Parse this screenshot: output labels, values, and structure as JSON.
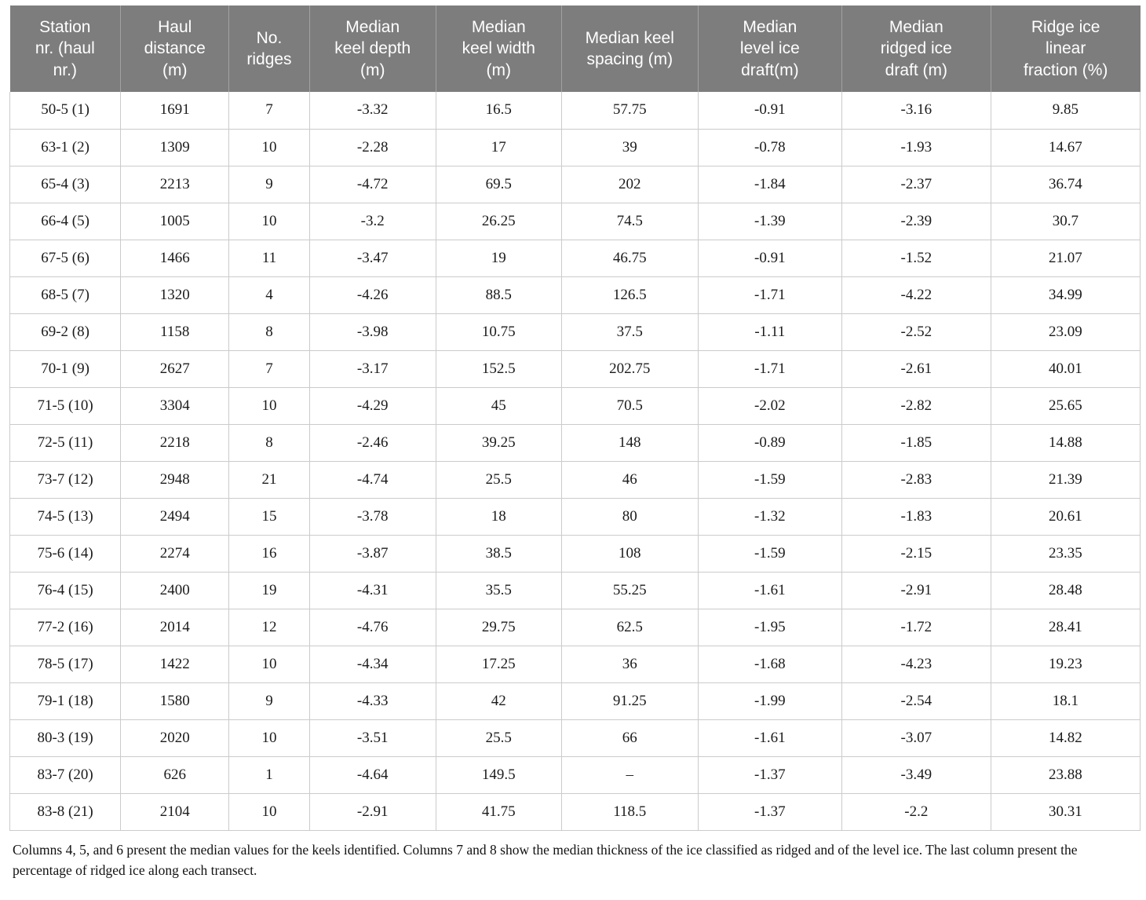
{
  "table": {
    "columns": [
      "Station\nnr. (haul\nnr.)",
      "Haul\ndistance\n(m)",
      "No.\nridges",
      "Median\nkeel depth\n(m)",
      "Median\nkeel width\n(m)",
      "Median keel\nspacing (m)",
      "Median\nlevel ice\ndraft(m)",
      "Median\nridged ice\ndraft (m)",
      "Ridge ice\nlinear\nfraction (%)"
    ],
    "rows": [
      [
        "50-5 (1)",
        "1691",
        "7",
        "-3.32",
        "16.5",
        "57.75",
        "-0.91",
        "-3.16",
        "9.85"
      ],
      [
        "63-1 (2)",
        "1309",
        "10",
        "-2.28",
        "17",
        "39",
        "-0.78",
        "-1.93",
        "14.67"
      ],
      [
        "65-4 (3)",
        "2213",
        "9",
        "-4.72",
        "69.5",
        "202",
        "-1.84",
        "-2.37",
        "36.74"
      ],
      [
        "66-4 (5)",
        "1005",
        "10",
        "-3.2",
        "26.25",
        "74.5",
        "-1.39",
        "-2.39",
        "30.7"
      ],
      [
        "67-5 (6)",
        "1466",
        "11",
        "-3.47",
        "19",
        "46.75",
        "-0.91",
        "-1.52",
        "21.07"
      ],
      [
        "68-5 (7)",
        "1320",
        "4",
        "-4.26",
        "88.5",
        "126.5",
        "-1.71",
        "-4.22",
        "34.99"
      ],
      [
        "69-2 (8)",
        "1158",
        "8",
        "-3.98",
        "10.75",
        "37.5",
        "-1.11",
        "-2.52",
        "23.09"
      ],
      [
        "70-1 (9)",
        "2627",
        "7",
        "-3.17",
        "152.5",
        "202.75",
        "-1.71",
        "-2.61",
        "40.01"
      ],
      [
        "71-5 (10)",
        "3304",
        "10",
        "-4.29",
        "45",
        "70.5",
        "-2.02",
        "-2.82",
        "25.65"
      ],
      [
        "72-5 (11)",
        "2218",
        "8",
        "-2.46",
        "39.25",
        "148",
        "-0.89",
        "-1.85",
        "14.88"
      ],
      [
        "73-7 (12)",
        "2948",
        "21",
        "-4.74",
        "25.5",
        "46",
        "-1.59",
        "-2.83",
        "21.39"
      ],
      [
        "74-5 (13)",
        "2494",
        "15",
        "-3.78",
        "18",
        "80",
        "-1.32",
        "-1.83",
        "20.61"
      ],
      [
        "75-6 (14)",
        "2274",
        "16",
        "-3.87",
        "38.5",
        "108",
        "-1.59",
        "-2.15",
        "23.35"
      ],
      [
        "76-4 (15)",
        "2400",
        "19",
        "-4.31",
        "35.5",
        "55.25",
        "-1.61",
        "-2.91",
        "28.48"
      ],
      [
        "77-2 (16)",
        "2014",
        "12",
        "-4.76",
        "29.75",
        "62.5",
        "-1.95",
        "-1.72",
        "28.41"
      ],
      [
        "78-5 (17)",
        "1422",
        "10",
        "-4.34",
        "17.25",
        "36",
        "-1.68",
        "-4.23",
        "19.23"
      ],
      [
        "79-1 (18)",
        "1580",
        "9",
        "-4.33",
        "42",
        "91.25",
        "-1.99",
        "-2.54",
        "18.1"
      ],
      [
        "80-3 (19)",
        "2020",
        "10",
        "-3.51",
        "25.5",
        "66",
        "-1.61",
        "-3.07",
        "14.82"
      ],
      [
        "83-7 (20)",
        "626",
        "1",
        "-4.64",
        "149.5",
        "–",
        "-1.37",
        "-3.49",
        "23.88"
      ],
      [
        "83-8 (21)",
        "2104",
        "10",
        "-2.91",
        "41.75",
        "118.5",
        "-1.37",
        "-2.2",
        "30.31"
      ]
    ]
  },
  "footnote": "Columns 4, 5, and 6 present the median values for the keels identified. Columns 7 and 8 show the median thickness of the ice classified as ridged and of the level ice. The last column present the percentage of ridged ice along each transect.",
  "colors": {
    "header_bg": "#7d7d7d",
    "header_text": "#ffffff",
    "header_separator": "#a2a2a2",
    "grid_line": "#cbcbcb",
    "body_text": "#1b1b1b"
  }
}
